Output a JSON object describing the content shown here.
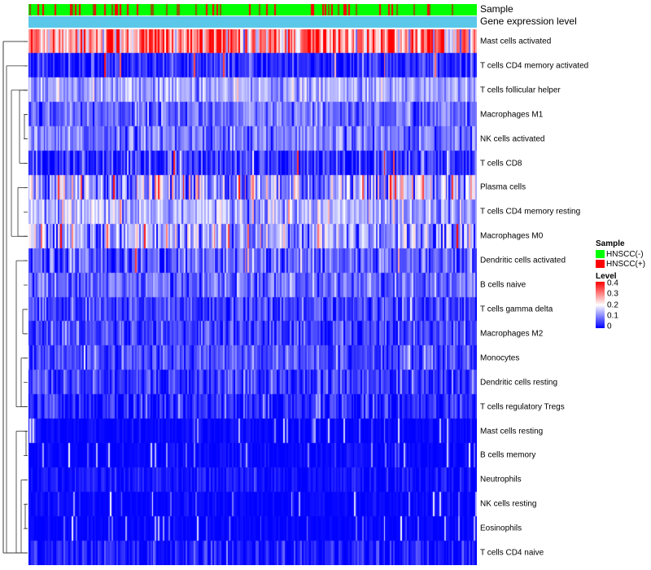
{
  "chart_data": {
    "type": "heatmap",
    "title": "",
    "annotations": {
      "sample_label": "Sample",
      "level_label": "Gene expression level",
      "level_color": "#5bc8ea"
    },
    "rows": [
      {
        "label": "Mast cells activated",
        "mean": 0.3,
        "spread": 0.1,
        "outliers": 0.0
      },
      {
        "label": "T cells CD4 memory activated",
        "mean": 0.03,
        "spread": 0.04,
        "outliers": 0.02
      },
      {
        "label": "T cells follicular helper",
        "mean": 0.13,
        "spread": 0.04,
        "outliers": 0.0
      },
      {
        "label": "Macrophages M1",
        "mean": 0.08,
        "spread": 0.04,
        "outliers": 0.0
      },
      {
        "label": "NK cells activated",
        "mean": 0.09,
        "spread": 0.04,
        "outliers": 0.0
      },
      {
        "label": "T cells CD8",
        "mean": 0.04,
        "spread": 0.05,
        "outliers": 0.02
      },
      {
        "label": "Plasma cells",
        "mean": 0.12,
        "spread": 0.08,
        "outliers": 0.04
      },
      {
        "label": "T cells CD4 memory resting",
        "mean": 0.14,
        "spread": 0.05,
        "outliers": 0.01
      },
      {
        "label": "Macrophages M0",
        "mean": 0.13,
        "spread": 0.07,
        "outliers": 0.03
      },
      {
        "label": "Dendritic cells activated",
        "mean": 0.07,
        "spread": 0.05,
        "outliers": 0.01
      },
      {
        "label": "B cells naive",
        "mean": 0.08,
        "spread": 0.04,
        "outliers": 0.0
      },
      {
        "label": "T cells gamma delta",
        "mean": 0.05,
        "spread": 0.04,
        "outliers": 0.0
      },
      {
        "label": "Macrophages M2",
        "mean": 0.05,
        "spread": 0.04,
        "outliers": 0.0
      },
      {
        "label": "Monocytes",
        "mean": 0.06,
        "spread": 0.04,
        "outliers": 0.0
      },
      {
        "label": "Dendritic cells resting",
        "mean": 0.04,
        "spread": 0.04,
        "outliers": 0.0
      },
      {
        "label": "T cells regulatory  Tregs",
        "mean": 0.03,
        "spread": 0.04,
        "outliers": 0.0
      },
      {
        "label": "Mast cells resting",
        "mean": 0.005,
        "spread": 0.01,
        "outliers": 0.0
      },
      {
        "label": "B cells memory",
        "mean": 0.005,
        "spread": 0.01,
        "outliers": 0.0
      },
      {
        "label": "Neutrophils",
        "mean": 0.01,
        "spread": 0.02,
        "outliers": 0.0
      },
      {
        "label": "NK cells resting",
        "mean": 0.005,
        "spread": 0.01,
        "outliers": 0.0
      },
      {
        "label": "Eosinophils",
        "mean": 0.003,
        "spread": 0.008,
        "outliers": 0.0
      },
      {
        "label": "T cells CD4 naive",
        "mean": 0.02,
        "spread": 0.03,
        "outliers": 0.0
      }
    ],
    "n_samples": 290,
    "sample_positive_fraction": 0.15,
    "sample_colors": {
      "negative": "#00ff00",
      "positive": "#ff0000",
      "mixed": "#8b5a00"
    },
    "color_scale": {
      "min": 0,
      "max": 0.4,
      "low": "#0000ff",
      "mid": "#ffffff",
      "high": "#ff0000"
    },
    "legend": {
      "sample_title": "Sample",
      "sample_items": [
        {
          "label": "HNSCC(-)",
          "color": "#00ff00"
        },
        {
          "label": "HNSCC(+)",
          "color": "#ff0000"
        }
      ],
      "level_title": "Level",
      "level_ticks": [
        {
          "label": "0.4",
          "value": 0.4
        },
        {
          "label": "0.3",
          "value": 0.3
        },
        {
          "label": "0.2",
          "value": 0.2
        },
        {
          "label": "0.1",
          "value": 0.1
        },
        {
          "label": "0",
          "value": 0
        }
      ]
    },
    "dendrogram": [
      {
        "a": 20,
        "b": 19,
        "h": 0.05
      },
      {
        "a": 16,
        "b": 17,
        "h": 0.08
      },
      {
        "a": 18,
        "b": 21,
        "h": 0.12
      },
      {
        "a": 3,
        "b": 4,
        "h": 0.1
      },
      {
        "a": 9,
        "b": 10,
        "h": 0.14
      },
      {
        "a": 11,
        "b": 12,
        "h": 0.13
      },
      {
        "a": 13,
        "b": 14,
        "h": 0.16
      },
      {
        "a": 7,
        "b": 8,
        "h": 0.18
      },
      {
        "a": 1,
        "b": 5,
        "h": 0.22
      },
      {
        "a": 2,
        "b": 6,
        "h": 0.24
      }
    ]
  }
}
